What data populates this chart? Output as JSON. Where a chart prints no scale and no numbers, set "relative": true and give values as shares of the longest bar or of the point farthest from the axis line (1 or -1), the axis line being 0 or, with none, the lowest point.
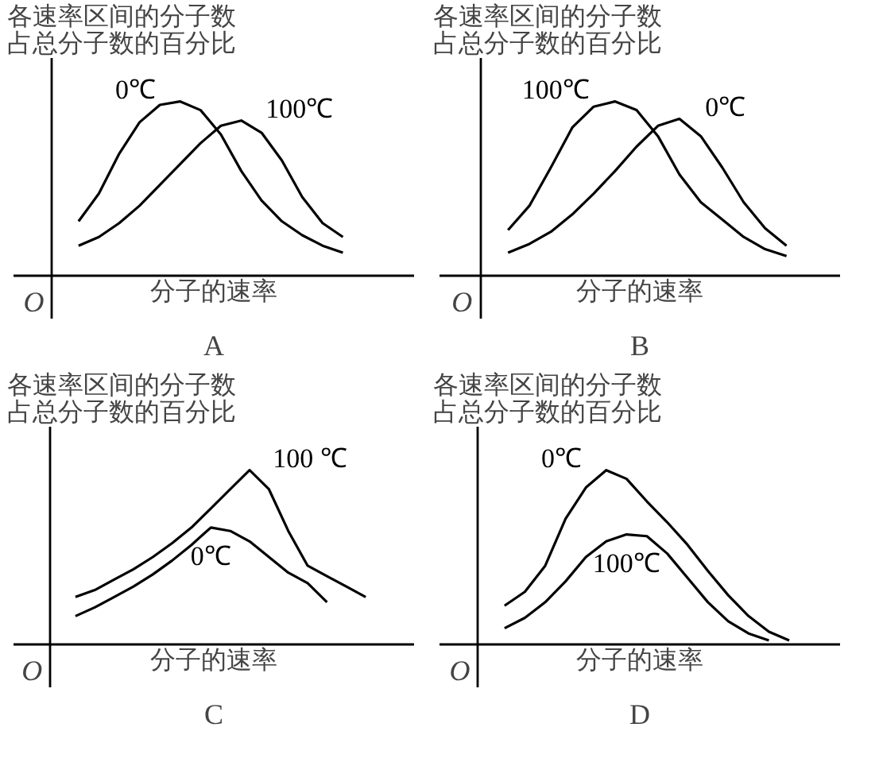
{
  "chart_data": [
    {
      "type": "line",
      "relative": true,
      "tick_labels": false,
      "title": "A",
      "ylabel": "各速率区间的分子数占总分子数的百分比",
      "xlabel": "分子的速率",
      "annotations": [
        "O"
      ],
      "categories": [
        null,
        null,
        null,
        null,
        null,
        null,
        null,
        null,
        null,
        null,
        null,
        null,
        null,
        null,
        null
      ],
      "series": [
        {
          "name": "0℃",
          "color": "#000000",
          "values": [
            0.31,
            0.47,
            0.7,
            0.88,
            0.98,
            1.0,
            0.95,
            0.81,
            0.6,
            0.43,
            0.31,
            0.23,
            0.17,
            0.13,
            null
          ]
        },
        {
          "name": "100℃",
          "color": "#000000",
          "values": [
            0.17,
            0.22,
            0.3,
            0.4,
            0.52,
            0.64,
            0.76,
            0.86,
            0.89,
            0.82,
            0.66,
            0.45,
            0.3,
            0.22,
            null
          ]
        }
      ]
    },
    {
      "type": "line",
      "relative": true,
      "tick_labels": false,
      "title": "B",
      "ylabel": "各速率区间的分子数占总分子数的百分比",
      "xlabel": "分子的速率",
      "annotations": [
        "O"
      ],
      "categories": [
        null,
        null,
        null,
        null,
        null,
        null,
        null,
        null,
        null,
        null,
        null,
        null,
        null,
        null
      ],
      "series": [
        {
          "name": "100℃",
          "color": "#000000",
          "values": [
            0.26,
            0.4,
            0.62,
            0.85,
            0.97,
            1.0,
            0.95,
            0.8,
            0.58,
            0.42,
            0.32,
            0.22,
            0.15,
            0.11
          ]
        },
        {
          "name": "0℃",
          "color": "#000000",
          "values": [
            0.13,
            0.18,
            0.25,
            0.35,
            0.47,
            0.6,
            0.74,
            0.86,
            0.9,
            0.8,
            0.62,
            0.42,
            0.27,
            0.17
          ]
        }
      ]
    },
    {
      "type": "line",
      "relative": true,
      "tick_labels": false,
      "title": "C",
      "ylabel": "各速率区间的分子数占总分子数的百分比",
      "xlabel": "分子的速率",
      "annotations": [
        "O"
      ],
      "categories": [
        null,
        null,
        null,
        null,
        null,
        null,
        null,
        null,
        null,
        null,
        null,
        null,
        null,
        null,
        null,
        null
      ],
      "series": [
        {
          "name": "100 ℃",
          "color": "#000000",
          "values": [
            0.27,
            0.31,
            0.37,
            0.43,
            0.5,
            0.58,
            0.67,
            0.78,
            0.89,
            1.0,
            0.89,
            0.65,
            0.45,
            0.39,
            0.33,
            0.27
          ]
        },
        {
          "name": "0℃",
          "color": "#000000",
          "values": [
            0.16,
            0.21,
            0.27,
            0.33,
            0.4,
            0.48,
            0.57,
            0.67,
            0.65,
            0.59,
            0.5,
            0.41,
            0.35,
            0.24,
            null,
            null
          ]
        }
      ]
    },
    {
      "type": "line",
      "relative": true,
      "tick_labels": false,
      "title": "D",
      "ylabel": "各速率区间的分子数占总分子数的百分比",
      "xlabel": "分子的速率",
      "annotations": [
        "O"
      ],
      "categories": [
        null,
        null,
        null,
        null,
        null,
        null,
        null,
        null,
        null,
        null,
        null,
        null,
        null,
        null,
        null
      ],
      "series": [
        {
          "name": "0℃",
          "color": "#000000",
          "values": [
            0.22,
            0.3,
            0.45,
            0.72,
            0.9,
            1.0,
            0.95,
            0.82,
            0.7,
            0.57,
            0.42,
            0.28,
            0.16,
            0.07,
            0.02
          ]
        },
        {
          "name": "100℃",
          "color": "#000000",
          "values": [
            0.09,
            0.15,
            0.24,
            0.36,
            0.5,
            0.59,
            0.63,
            0.62,
            0.52,
            0.38,
            0.24,
            0.13,
            0.06,
            0.02,
            null
          ]
        }
      ]
    }
  ]
}
